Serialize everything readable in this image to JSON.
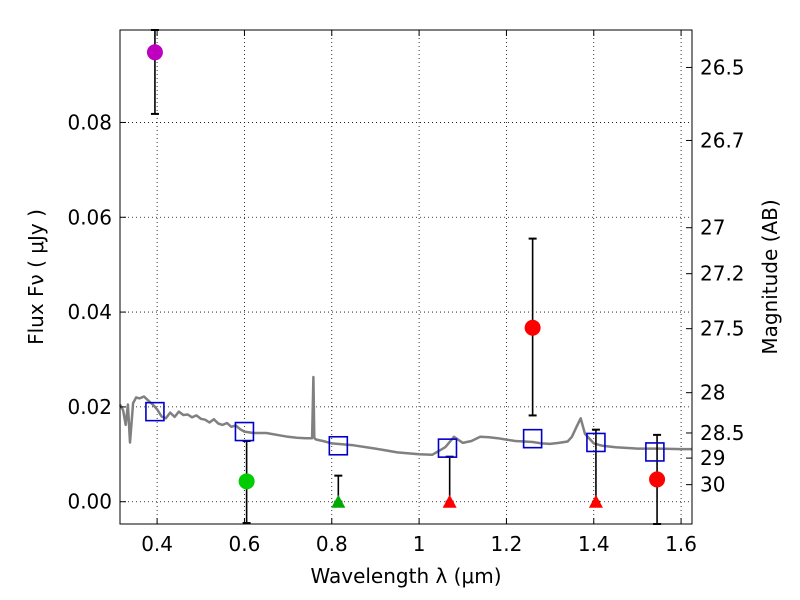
{
  "chart_data": {
    "type": "scatter",
    "xlabel": "Wavelength  λ (μm)",
    "ylabel": "Flux  Fν  ( μJy )",
    "ylabel_right": "Magnitude (AB)",
    "xlim": [
      0.315,
      1.625
    ],
    "ylim": [
      -0.0047,
      0.0995
    ],
    "xticks": [
      0.4,
      0.6,
      0.8,
      1.0,
      1.2,
      1.4,
      1.6
    ],
    "xtick_labels": [
      "0.4",
      "0.6",
      "0.8",
      "1",
      "1.2",
      "1.4",
      "1.6"
    ],
    "yticks": [
      0.0,
      0.02,
      0.04,
      0.06,
      0.08
    ],
    "ytick_labels": [
      "0.00",
      "0.02",
      "0.04",
      "0.06",
      "0.08"
    ],
    "right_axis": {
      "ticks": [
        {
          "label": "26.5",
          "flux": 0.0916
        },
        {
          "label": "26.7",
          "flux": 0.0762
        },
        {
          "label": "27",
          "flux": 0.0578
        },
        {
          "label": "27.2",
          "flux": 0.0481
        },
        {
          "label": "27.5",
          "flux": 0.0365
        },
        {
          "label": "28",
          "flux": 0.023
        },
        {
          "label": "28.5",
          "flux": 0.0145
        },
        {
          "label": "29",
          "flux": 0.0092
        },
        {
          "label": "30",
          "flux": 0.0036
        }
      ]
    },
    "grid": true,
    "series": [
      {
        "name": "model-spectrum",
        "kind": "line",
        "color": "#808080",
        "x": [
          0.315,
          0.322,
          0.328,
          0.333,
          0.338,
          0.345,
          0.352,
          0.36,
          0.37,
          0.38,
          0.39,
          0.4,
          0.41,
          0.42,
          0.43,
          0.44,
          0.45,
          0.46,
          0.47,
          0.48,
          0.49,
          0.5,
          0.51,
          0.52,
          0.53,
          0.54,
          0.55,
          0.56,
          0.57,
          0.58,
          0.59,
          0.6,
          0.62,
          0.65,
          0.68,
          0.7,
          0.72,
          0.74,
          0.755,
          0.758,
          0.76,
          0.762,
          0.765,
          0.78,
          0.8,
          0.85,
          0.9,
          0.95,
          1.0,
          1.03,
          1.06,
          1.08,
          1.1,
          1.12,
          1.14,
          1.16,
          1.18,
          1.2,
          1.22,
          1.24,
          1.26,
          1.28,
          1.3,
          1.32,
          1.34,
          1.35,
          1.36,
          1.37,
          1.38,
          1.4,
          1.42,
          1.45,
          1.5,
          1.55,
          1.6,
          1.625
        ],
        "y": [
          0.0205,
          0.0193,
          0.0162,
          0.0205,
          0.0125,
          0.0208,
          0.022,
          0.0218,
          0.0222,
          0.0213,
          0.0205,
          0.0195,
          0.018,
          0.0176,
          0.0188,
          0.0179,
          0.019,
          0.0183,
          0.0184,
          0.0178,
          0.0182,
          0.0175,
          0.0173,
          0.0167,
          0.0174,
          0.0165,
          0.0162,
          0.0166,
          0.0158,
          0.0161,
          0.0153,
          0.0148,
          0.0145,
          0.0145,
          0.014,
          0.0137,
          0.0135,
          0.0134,
          0.0134,
          0.0263,
          0.0135,
          0.0132,
          0.0131,
          0.0128,
          0.0123,
          0.0119,
          0.0112,
          0.0104,
          0.01,
          0.0099,
          0.0115,
          0.0137,
          0.0124,
          0.0128,
          0.0137,
          0.0136,
          0.0134,
          0.0131,
          0.0128,
          0.0127,
          0.0126,
          0.0123,
          0.0122,
          0.0124,
          0.0127,
          0.0137,
          0.0157,
          0.0176,
          0.0143,
          0.0123,
          0.0118,
          0.0115,
          0.0112,
          0.0112,
          0.0111,
          0.0111
        ]
      },
      {
        "name": "model-photometry",
        "kind": "open-square",
        "color": "#0000cc",
        "points": [
          {
            "x": 0.395,
            "y": 0.019
          },
          {
            "x": 0.6,
            "y": 0.0148
          },
          {
            "x": 0.815,
            "y": 0.0118
          },
          {
            "x": 1.065,
            "y": 0.0113
          },
          {
            "x": 1.26,
            "y": 0.0133
          },
          {
            "x": 1.405,
            "y": 0.0125
          },
          {
            "x": 1.54,
            "y": 0.0105
          }
        ]
      },
      {
        "name": "detections",
        "kind": "filled-circle",
        "points": [
          {
            "x": 0.395,
            "y": 0.0948,
            "yerr_low": 0.0818,
            "yerr_high": 0.0995,
            "color": "#bf00bf"
          },
          {
            "x": 0.605,
            "y": 0.0043,
            "yerr_low": -0.0045,
            "yerr_high": 0.0128,
            "color": "#00cc00"
          },
          {
            "x": 1.26,
            "y": 0.0367,
            "yerr_low": 0.0182,
            "yerr_high": 0.0555,
            "color": "#ff0000"
          },
          {
            "x": 1.545,
            "y": 0.0047,
            "yerr_low": -0.0047,
            "yerr_high": 0.0141,
            "color": "#ff0000"
          }
        ]
      },
      {
        "name": "upper-limits",
        "kind": "filled-triangle",
        "points": [
          {
            "x": 0.815,
            "y": 0.0,
            "yerr_high": 0.0055,
            "color": "#00aa00"
          },
          {
            "x": 1.07,
            "y": 0.0,
            "yerr_high": 0.0095,
            "color": "#ff0000"
          },
          {
            "x": 1.405,
            "y": 0.0,
            "yerr_high": 0.0152,
            "color": "#ff0000"
          }
        ]
      }
    ]
  }
}
